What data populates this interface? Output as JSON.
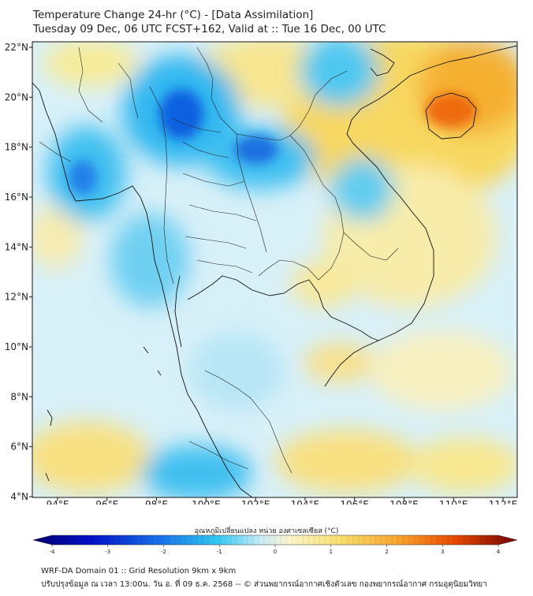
{
  "title_line1": "Temperature Change 24-hr (°C) - [Data Assimilation]",
  "title_line2": "Tuesday 09 Dec, 06 UTC FCST+162, Valid at :: Tue 16 Dec, 00 UTC",
  "lat_labels": [
    "22°N",
    "20°N",
    "18°N",
    "16°N",
    "14°N",
    "12°N",
    "10°N",
    "8°N",
    "6°N",
    "4°N"
  ],
  "lon_labels": [
    "94°E",
    "96°E",
    "98°E",
    "100°E",
    "102°E",
    "104°E",
    "106°E",
    "108°E",
    "110°E",
    "112°E"
  ],
  "colorbar": {
    "label": "อุณหภูมิเปลี่ยนแปลง หน่วย องศาเซลเซียส (°C)",
    "ticks": [
      "-4",
      "-3",
      "-2",
      "-1",
      "0",
      "1",
      "2",
      "3",
      "4"
    ],
    "min": -4,
    "max": 4
  },
  "footer_line1": "WRF-DA Domain 01 :: Grid Resolution 9km x 9km",
  "footer_line2": "ปรับปรุงข้อมูล ณ เวลา 13:00น. วัน อ. ที่ 09 ธ.ค. 2568 -- © ส่วนพยากรณ์อากาศเชิงตัวเลข กองพยากรณ์อากาศ กรมอุตุนิยมวิทยา",
  "colors": {
    "background": "#ffffff",
    "coastline": "#111111",
    "border": "#222222",
    "cold_max": "#0018c8",
    "warm_max": "#e84a00"
  }
}
